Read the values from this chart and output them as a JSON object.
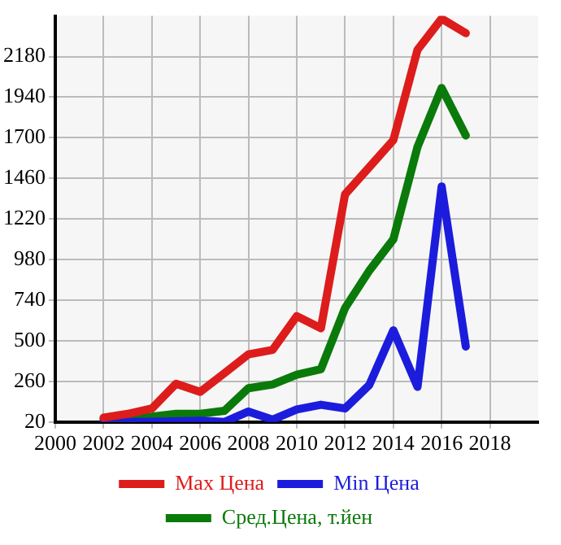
{
  "chart_data": {
    "type": "line",
    "x": [
      2002,
      2003,
      2004,
      2005,
      2006,
      2007,
      2008,
      2009,
      2010,
      2011,
      2012,
      2013,
      2014,
      2015,
      2016,
      2017
    ],
    "series": [
      {
        "name": "Max Цена",
        "color": "#dd1c1c",
        "values": [
          46,
          68,
          100,
          246,
          198,
          308,
          420,
          446,
          646,
          574,
          1366,
          1526,
          1686,
          2220,
          2404,
          2318
        ]
      },
      {
        "name": "Min Цена",
        "color": "#1c1cdd",
        "values": [
          20,
          20,
          22,
          24,
          28,
          20,
          82,
          34,
          94,
          122,
          100,
          238,
          562,
          228,
          1412,
          466
        ]
      },
      {
        "name": "Сред.Цена, т.йен",
        "color": "#0a7a0a",
        "values": [
          38,
          40,
          52,
          68,
          68,
          86,
          220,
          242,
          300,
          332,
          694,
          914,
          1100,
          1646,
          1994,
          1714
        ]
      }
    ],
    "xlim": [
      2000,
      2020
    ],
    "xticks": [
      2000,
      2002,
      2004,
      2006,
      2008,
      2010,
      2012,
      2014,
      2016,
      2018
    ],
    "ylim": [
      20,
      2420
    ],
    "yticks": [
      20,
      260,
      500,
      740,
      980,
      1220,
      1460,
      1700,
      1940,
      2180
    ],
    "grid": true,
    "legend": "bottom",
    "marker": "none",
    "line_style": "solid"
  }
}
